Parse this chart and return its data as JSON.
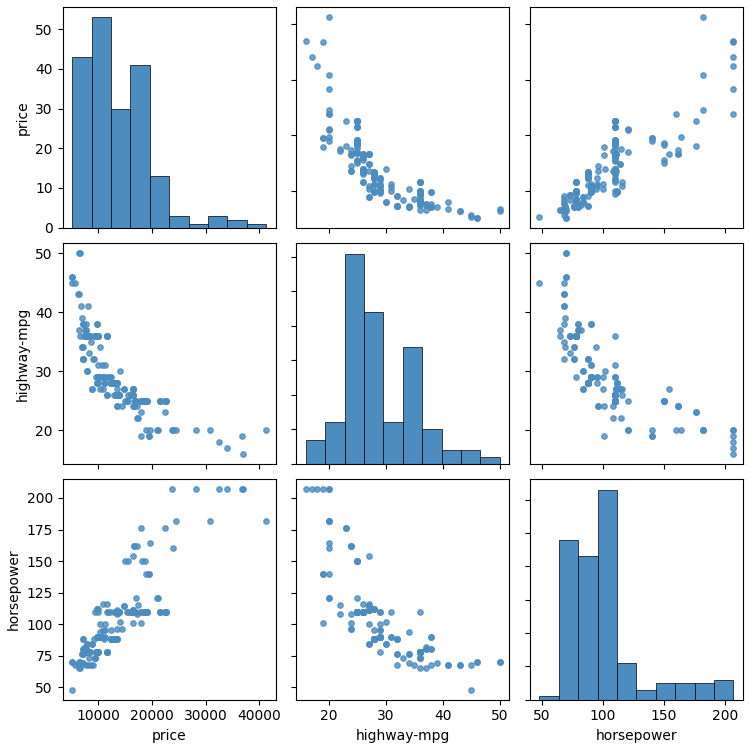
{
  "price": [
    13495,
    16500,
    16500,
    13950,
    17450,
    15250,
    17710,
    18920,
    23875,
    17859,
    16430,
    16925,
    20970,
    21105,
    24565,
    30760,
    41315,
    36880,
    5151,
    6295,
    6575,
    5572,
    6377,
    7957,
    6229,
    6692,
    7609,
    8558,
    8921,
    6434,
    6529,
    7129,
    7295,
    7295,
    7895,
    9895,
    12945,
    10345,
    10795,
    11048,
    13495,
    13845,
    15510,
    18150,
    18620,
    5118,
    7053,
    7603,
    7126,
    7775,
    7975,
    8195,
    8495,
    9495,
    9995,
    11595,
    9980,
    13295,
    13845,
    12290,
    12940,
    13415,
    15985,
    16515,
    18420,
    18950,
    16845,
    19045,
    21485,
    22470,
    22625,
    9095,
    9995,
    11595,
    9980,
    13295,
    13845,
    12290,
    12940,
    13415,
    15985,
    16515,
    18420,
    18950,
    16845,
    19045,
    21485,
    22470,
    22625,
    9279,
    9279,
    9279,
    7463,
    10198,
    10698,
    11248,
    12285,
    14788,
    14788,
    16558,
    16558,
    17958,
    23748,
    28248,
    10898,
    11248,
    17248,
    22470,
    32528,
    34028,
    37028,
    9295,
    9895,
    11850,
    12170,
    15040,
    15510,
    18150,
    18620,
    5118,
    7053,
    7603,
    7126,
    7775,
    7975,
    8195,
    8495,
    9495,
    9995,
    11595,
    9980,
    13295,
    13845,
    12290,
    12940,
    13415,
    15985,
    16515,
    18420,
    18950,
    16845,
    19045,
    21485,
    22470,
    22625,
    16500,
    19500,
    7775,
    9750,
    9995,
    11595,
    9980,
    13295,
    12290,
    12940,
    15985,
    7898,
    8778,
    6938,
    7198,
    7898,
    8778,
    6938,
    7198,
    9800,
    9690,
    9990,
    11250,
    10250,
    10760,
    11549,
    6999,
    8249,
    9549,
    13499,
    14399,
    13499,
    17199,
    19699,
    7775,
    9750,
    9995,
    11595,
    9980,
    13295,
    12290,
    12940,
    15985,
    16500,
    19500
  ],
  "highway_mpg": [
    27,
    27,
    27,
    30,
    22,
    25,
    25,
    20,
    20,
    19,
    24,
    25,
    20,
    20,
    20,
    20,
    20,
    19,
    45,
    50,
    50,
    45,
    43,
    41,
    43,
    41,
    38,
    35,
    32,
    37,
    36,
    34,
    36,
    36,
    36,
    29,
    26,
    29,
    29,
    28,
    26,
    26,
    26,
    25,
    25,
    46,
    38,
    37,
    32,
    36,
    36,
    36,
    36,
    36,
    36,
    36,
    29,
    26,
    26,
    28,
    28,
    28,
    26,
    26,
    25,
    25,
    25,
    25,
    25,
    25,
    25,
    32,
    29,
    26,
    29,
    26,
    26,
    28,
    28,
    28,
    26,
    26,
    25,
    25,
    25,
    25,
    25,
    25,
    25,
    36,
    36,
    36,
    37,
    34,
    31,
    31,
    29,
    27,
    27,
    24,
    24,
    23,
    20,
    20,
    29,
    28,
    24,
    23,
    18,
    17,
    16,
    36,
    31,
    29,
    29,
    25,
    25,
    25,
    25,
    46,
    38,
    37,
    32,
    36,
    36,
    36,
    36,
    36,
    36,
    36,
    29,
    26,
    26,
    28,
    28,
    28,
    26,
    26,
    25,
    25,
    25,
    25,
    25,
    25,
    25,
    27,
    19,
    36,
    38,
    36,
    36,
    29,
    26,
    28,
    28,
    26,
    30,
    27,
    34,
    32,
    30,
    27,
    34,
    32,
    28,
    28,
    28,
    29,
    27,
    27,
    26,
    39,
    33,
    29,
    24,
    24,
    24,
    22,
    20,
    36,
    38,
    36,
    36,
    29,
    26,
    28,
    28,
    26,
    27,
    19
  ],
  "horsepower": [
    111,
    111,
    154,
    102,
    115,
    110,
    110,
    140,
    160,
    101,
    101,
    121,
    121,
    121,
    182,
    182,
    182,
    207,
    48,
    70,
    70,
    68,
    68,
    68,
    68,
    68,
    68,
    68,
    68,
    65,
    65,
    69,
    78,
    78,
    78,
    90,
    110,
    90,
    90,
    88,
    110,
    110,
    110,
    110,
    110,
    70,
    80,
    80,
    88,
    78,
    78,
    78,
    78,
    78,
    78,
    78,
    90,
    110,
    110,
    88,
    88,
    88,
    110,
    110,
    110,
    110,
    110,
    110,
    110,
    110,
    110,
    88,
    90,
    110,
    90,
    110,
    110,
    88,
    88,
    88,
    110,
    110,
    110,
    110,
    110,
    110,
    110,
    110,
    110,
    73,
    73,
    73,
    82,
    94,
    90,
    90,
    95,
    114,
    114,
    162,
    162,
    176,
    207,
    207,
    95,
    95,
    162,
    176,
    207,
    207,
    207,
    110,
    110,
    110,
    110,
    150,
    150,
    150,
    150,
    70,
    80,
    80,
    88,
    78,
    78,
    78,
    78,
    78,
    78,
    78,
    90,
    110,
    110,
    88,
    88,
    88,
    110,
    110,
    110,
    110,
    110,
    110,
    110,
    110,
    110,
    111,
    140,
    78,
    90,
    78,
    78,
    90,
    110,
    88,
    88,
    110,
    84,
    84,
    76,
    76,
    84,
    84,
    76,
    76,
    112,
    112,
    112,
    100,
    100,
    116,
    116,
    69,
    73,
    78,
    96,
    96,
    108,
    108,
    164,
    78,
    90,
    78,
    78,
    90,
    110,
    88,
    88,
    110,
    111,
    140
  ],
  "color": "#4c8cbf",
  "marker_size": 15,
  "alpha": 0.8,
  "variables": [
    "price",
    "highway-mpg",
    "horsepower"
  ],
  "hist_bins": 10,
  "figsize": [
    7.5,
    7.5
  ],
  "dpi": 100
}
